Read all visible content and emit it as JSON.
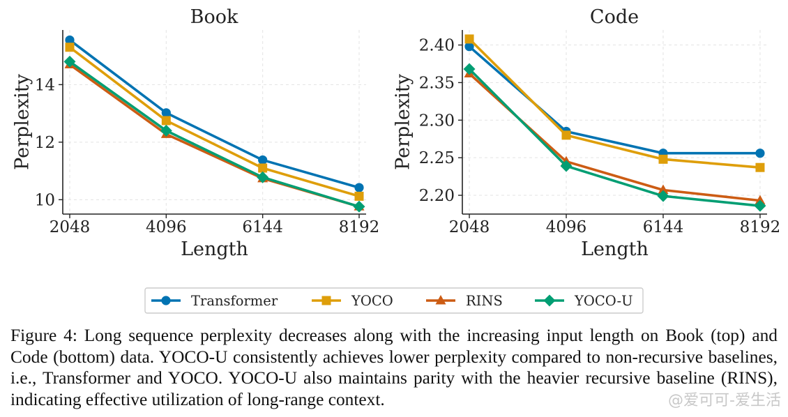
{
  "chart_data": [
    {
      "type": "line",
      "title": "Book",
      "xlabel": "Length",
      "ylabel": "Perplexity",
      "x": [
        2048,
        4096,
        6144,
        8192
      ],
      "xticks": [
        "2048",
        "4096",
        "6144",
        "8192"
      ],
      "xlim": [
        1900,
        8340
      ],
      "yticks": [
        10,
        12,
        14
      ],
      "ytick_labels": [
        "10",
        "12",
        "14"
      ],
      "ylim": [
        9.5,
        15.9
      ],
      "grid": true,
      "series": [
        {
          "name": "Transformer",
          "values": [
            15.55,
            13.02,
            11.38,
            10.42
          ]
        },
        {
          "name": "YOCO",
          "values": [
            15.3,
            12.75,
            11.1,
            10.12
          ]
        },
        {
          "name": "RINS",
          "values": [
            14.7,
            12.28,
            10.74,
            9.76
          ]
        },
        {
          "name": "YOCO-U",
          "values": [
            14.8,
            12.4,
            10.78,
            9.76
          ]
        }
      ]
    },
    {
      "type": "line",
      "title": "Code",
      "xlabel": "Length",
      "ylabel": "Perplexity",
      "x": [
        2048,
        4096,
        6144,
        8192
      ],
      "xticks": [
        "2048",
        "4096",
        "6144",
        "8192"
      ],
      "xlim": [
        1900,
        8340
      ],
      "yticks": [
        2.2,
        2.25,
        2.3,
        2.35,
        2.4
      ],
      "ytick_labels": [
        "2.20",
        "2.25",
        "2.30",
        "2.35",
        "2.40"
      ],
      "ylim": [
        2.175,
        2.42
      ],
      "grid": true,
      "series": [
        {
          "name": "Transformer",
          "values": [
            2.398,
            2.285,
            2.256,
            2.256
          ]
        },
        {
          "name": "YOCO",
          "values": [
            2.408,
            2.28,
            2.248,
            2.237
          ]
        },
        {
          "name": "RINS",
          "values": [
            2.362,
            2.245,
            2.207,
            2.193
          ]
        },
        {
          "name": "YOCO-U",
          "values": [
            2.368,
            2.239,
            2.199,
            2.186
          ]
        }
      ]
    }
  ],
  "series_styles": [
    {
      "name": "Transformer",
      "color": "#0173b2",
      "marker": "circle"
    },
    {
      "name": "YOCO",
      "color": "#de9e0a",
      "marker": "square"
    },
    {
      "name": "RINS",
      "color": "#cc5c14",
      "marker": "triangle"
    },
    {
      "name": "YOCO-U",
      "color": "#029e73",
      "marker": "diamond"
    }
  ],
  "legend": {
    "placement": "bottom-center",
    "entries": [
      "Transformer",
      "YOCO",
      "RINS",
      "YOCO-U"
    ]
  },
  "caption": {
    "text": "Figure 4: Long sequence perplexity decreases along with the increasing input length on Book (top) and Code (bottom) data. YOCO-U consistently achieves lower perplexity compared to non-recursive baselines, i.e., Transformer and YOCO. YOCO-U also maintains parity with the heavier recursive baseline (RINS), indicating effective utilization of long-range context."
  },
  "watermark": {
    "text": "@爱可可-爱生活"
  }
}
